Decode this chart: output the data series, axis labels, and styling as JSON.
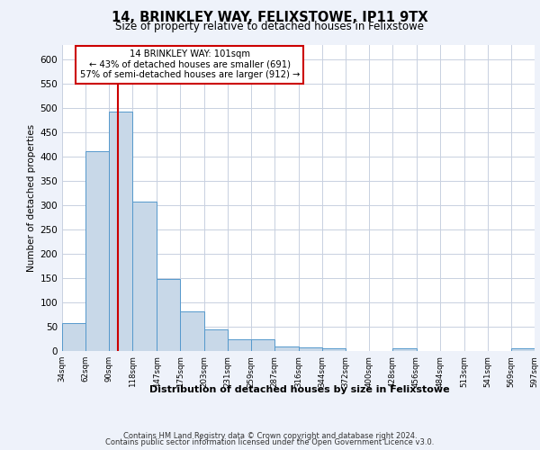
{
  "title1": "14, BRINKLEY WAY, FELIXSTOWE, IP11 9TX",
  "title2": "Size of property relative to detached houses in Felixstowe",
  "xlabel": "Distribution of detached houses by size in Felixstowe",
  "ylabel": "Number of detached properties",
  "footer1": "Contains HM Land Registry data © Crown copyright and database right 2024.",
  "footer2": "Contains public sector information licensed under the Open Government Licence v3.0.",
  "property_size": 101,
  "annotation_line1": "14 BRINKLEY WAY: 101sqm",
  "annotation_line2": "← 43% of detached houses are smaller (691)",
  "annotation_line3": "57% of semi-detached houses are larger (912) →",
  "bar_color": "#c8d8e8",
  "bar_edge_color": "#5599cc",
  "redline_color": "#cc0000",
  "bin_edges": [
    34,
    62,
    90,
    118,
    147,
    175,
    203,
    231,
    259,
    287,
    316,
    344,
    372,
    400,
    428,
    456,
    484,
    513,
    541,
    569,
    597
  ],
  "bin_counts": [
    57,
    412,
    493,
    307,
    149,
    81,
    44,
    24,
    24,
    9,
    8,
    6,
    0,
    0,
    5,
    0,
    0,
    0,
    0,
    5
  ],
  "ylim": [
    0,
    630
  ],
  "yticks": [
    0,
    50,
    100,
    150,
    200,
    250,
    300,
    350,
    400,
    450,
    500,
    550,
    600
  ],
  "background_color": "#eef2fa",
  "plot_bg_color": "#ffffff",
  "grid_color": "#c8d0e0",
  "annotation_box_color": "#ffffff",
  "annotation_box_edge": "#cc0000"
}
